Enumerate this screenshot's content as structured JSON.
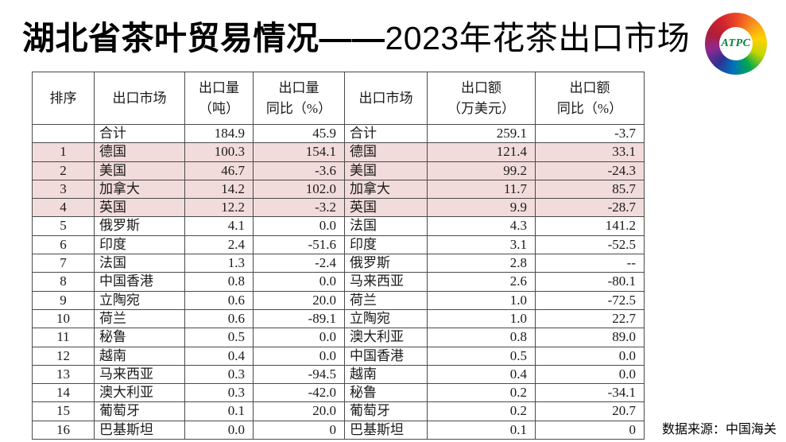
{
  "title": {
    "part1": "湖北省茶叶贸易情况——",
    "part2": "2023年花茶出口市场"
  },
  "logo": {
    "label": "ATPC"
  },
  "source_note": "数据来源：中国海关",
  "colors": {
    "highlight_pink": "#f2dcdb",
    "table_border": "#4a4a4a",
    "logo_text_green": "#00843d"
  },
  "chart_data": {
    "type": "table",
    "title": "湖北省茶叶贸易情况——2023年花茶出口市场",
    "columns": [
      {
        "key": "rank",
        "label_lines": [
          "排序"
        ]
      },
      {
        "key": "market_volume",
        "label_lines": [
          "出口市场"
        ]
      },
      {
        "key": "volume",
        "label_lines": [
          "出口量",
          "（吨）"
        ]
      },
      {
        "key": "volume_yoy",
        "label_lines": [
          "出口量",
          "同比（%）"
        ]
      },
      {
        "key": "market_value",
        "label_lines": [
          "出口市场"
        ]
      },
      {
        "key": "value",
        "label_lines": [
          "出口额",
          "（万美元）"
        ]
      },
      {
        "key": "value_yoy",
        "label_lines": [
          "出口额",
          "同比（%）"
        ]
      }
    ],
    "rows": [
      {
        "rank": "",
        "market_volume": "合计",
        "volume": "184.9",
        "volume_yoy": "45.9",
        "market_value": "合计",
        "value": "259.1",
        "value_yoy": "-3.7",
        "highlight": false
      },
      {
        "rank": "1",
        "market_volume": "德国",
        "volume": "100.3",
        "volume_yoy": "154.1",
        "market_value": "德国",
        "value": "121.4",
        "value_yoy": "33.1",
        "highlight": true
      },
      {
        "rank": "2",
        "market_volume": "美国",
        "volume": "46.7",
        "volume_yoy": "-3.6",
        "market_value": "美国",
        "value": "99.2",
        "value_yoy": "-24.3",
        "highlight": true
      },
      {
        "rank": "3",
        "market_volume": "加拿大",
        "volume": "14.2",
        "volume_yoy": "102.0",
        "market_value": "加拿大",
        "value": "11.7",
        "value_yoy": "85.7",
        "highlight": true
      },
      {
        "rank": "4",
        "market_volume": "英国",
        "volume": "12.2",
        "volume_yoy": "-3.2",
        "market_value": "英国",
        "value": "9.9",
        "value_yoy": "-28.7",
        "highlight": true
      },
      {
        "rank": "5",
        "market_volume": "俄罗斯",
        "volume": "4.1",
        "volume_yoy": "0.0",
        "market_value": "法国",
        "value": "4.3",
        "value_yoy": "141.2",
        "highlight": false
      },
      {
        "rank": "6",
        "market_volume": "印度",
        "volume": "2.4",
        "volume_yoy": "-51.6",
        "market_value": "印度",
        "value": "3.1",
        "value_yoy": "-52.5",
        "highlight": false
      },
      {
        "rank": "7",
        "market_volume": "法国",
        "volume": "1.3",
        "volume_yoy": "-2.4",
        "market_value": "俄罗斯",
        "value": "2.8",
        "value_yoy": "--",
        "highlight": false
      },
      {
        "rank": "8",
        "market_volume": "中国香港",
        "volume": "0.8",
        "volume_yoy": "0.0",
        "market_value": "马来西亚",
        "value": "2.6",
        "value_yoy": "-80.1",
        "highlight": false
      },
      {
        "rank": "9",
        "market_volume": "立陶宛",
        "volume": "0.6",
        "volume_yoy": "20.0",
        "market_value": "荷兰",
        "value": "1.0",
        "value_yoy": "-72.5",
        "highlight": false
      },
      {
        "rank": "10",
        "market_volume": "荷兰",
        "volume": "0.6",
        "volume_yoy": "-89.1",
        "market_value": "立陶宛",
        "value": "1.0",
        "value_yoy": "22.7",
        "highlight": false
      },
      {
        "rank": "11",
        "market_volume": "秘鲁",
        "volume": "0.5",
        "volume_yoy": "0.0",
        "market_value": "澳大利亚",
        "value": "0.8",
        "value_yoy": "89.0",
        "highlight": false
      },
      {
        "rank": "12",
        "market_volume": "越南",
        "volume": "0.4",
        "volume_yoy": "0.0",
        "market_value": "中国香港",
        "value": "0.5",
        "value_yoy": "0.0",
        "highlight": false
      },
      {
        "rank": "13",
        "market_volume": "马来西亚",
        "volume": "0.3",
        "volume_yoy": "-94.5",
        "market_value": "越南",
        "value": "0.4",
        "value_yoy": "0.0",
        "highlight": false
      },
      {
        "rank": "14",
        "market_volume": "澳大利亚",
        "volume": "0.3",
        "volume_yoy": "-42.0",
        "market_value": "秘鲁",
        "value": "0.2",
        "value_yoy": "-34.1",
        "highlight": false
      },
      {
        "rank": "15",
        "market_volume": "葡萄牙",
        "volume": "0.1",
        "volume_yoy": "20.0",
        "market_value": "葡萄牙",
        "value": "0.2",
        "value_yoy": "20.7",
        "highlight": false
      },
      {
        "rank": "16",
        "market_volume": "巴基斯坦",
        "volume": "0.0",
        "volume_yoy": "0",
        "market_value": "巴基斯坦",
        "value": "0.1",
        "value_yoy": "0",
        "highlight": false
      }
    ]
  }
}
